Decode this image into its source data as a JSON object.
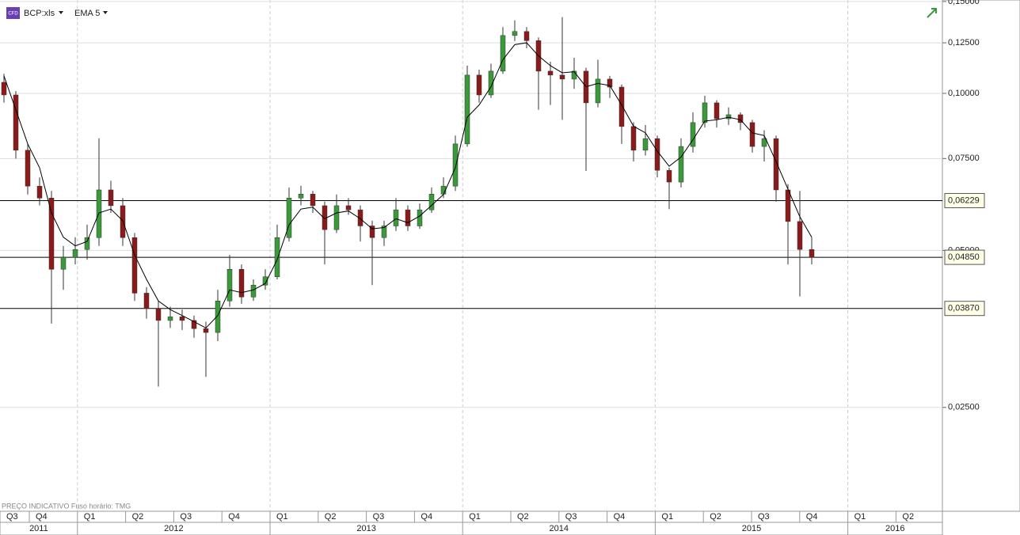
{
  "chart_data": {
    "type": "candlestick",
    "symbol": "BCP:xls",
    "icon_text": "CFD",
    "indicator": "EMA 5",
    "footer": "PREÇO INDICATIVO   Fuso horário: TMG",
    "log_scale": true,
    "grid": true,
    "up_color": "#3a9a3a",
    "down_color": "#8b1a1a",
    "ema_color": "#000000",
    "ylim": [
      0.0166,
      0.151
    ],
    "yticks": [
      {
        "value": 0.15,
        "label": "0,15000"
      },
      {
        "value": 0.125,
        "label": "0,12500"
      },
      {
        "value": 0.1,
        "label": "0,10000"
      },
      {
        "value": 0.075,
        "label": "0,07500"
      },
      {
        "value": 0.05,
        "label": "0,05000"
      },
      {
        "value": 0.025,
        "label": "0,02500"
      }
    ],
    "price_lines": [
      {
        "value": 0.06229,
        "label": "0,06229"
      },
      {
        "value": 0.0485,
        "label": "0,04850"
      },
      {
        "value": 0.0387,
        "label": "0,03870"
      }
    ],
    "quarters": [
      "Q3",
      "Q4",
      "Q1",
      "Q2",
      "Q3",
      "Q4",
      "Q1",
      "Q2",
      "Q3",
      "Q4",
      "Q1",
      "Q2",
      "Q3",
      "Q4",
      "Q1",
      "Q2",
      "Q3",
      "Q4",
      "Q1",
      "Q2"
    ],
    "years": [
      "2011",
      "2012",
      "2013",
      "2014",
      "2015",
      "2016"
    ],
    "ohlc": [
      [
        0.105,
        0.109,
        0.096,
        0.0993
      ],
      [
        0.0993,
        0.101,
        0.075,
        0.0778
      ],
      [
        0.0778,
        0.08,
        0.064,
        0.0664
      ],
      [
        0.0664,
        0.069,
        0.061,
        0.063
      ],
      [
        0.063,
        0.065,
        0.0362,
        0.046
      ],
      [
        0.046,
        0.051,
        0.042,
        0.0485
      ],
      [
        0.0485,
        0.053,
        0.047,
        0.0502
      ],
      [
        0.0502,
        0.056,
        0.048,
        0.0529
      ],
      [
        0.0529,
        0.082,
        0.051,
        0.0653
      ],
      [
        0.0653,
        0.068,
        0.059,
        0.0609
      ],
      [
        0.0609,
        0.063,
        0.051,
        0.0529
      ],
      [
        0.0529,
        0.054,
        0.04,
        0.0414
      ],
      [
        0.0414,
        0.0425,
        0.037,
        0.0387
      ],
      [
        0.0387,
        0.04,
        0.0274,
        0.0367
      ],
      [
        0.0367,
        0.039,
        0.0355,
        0.0373
      ],
      [
        0.0373,
        0.0385,
        0.0352,
        0.0367
      ],
      [
        0.0367,
        0.0375,
        0.034,
        0.0354
      ],
      [
        0.0354,
        0.0365,
        0.0286,
        0.0348
      ],
      [
        0.0348,
        0.042,
        0.0335,
        0.04
      ],
      [
        0.04,
        0.049,
        0.039,
        0.046
      ],
      [
        0.046,
        0.047,
        0.0395,
        0.0407
      ],
      [
        0.0407,
        0.044,
        0.04,
        0.0429
      ],
      [
        0.0429,
        0.046,
        0.042,
        0.0445
      ],
      [
        0.0445,
        0.056,
        0.044,
        0.0529
      ],
      [
        0.0529,
        0.066,
        0.052,
        0.063
      ],
      [
        0.063,
        0.0665,
        0.061,
        0.0641
      ],
      [
        0.0641,
        0.065,
        0.059,
        0.0609
      ],
      [
        0.0609,
        0.062,
        0.047,
        0.0548
      ],
      [
        0.0548,
        0.064,
        0.054,
        0.0609
      ],
      [
        0.0609,
        0.063,
        0.0585,
        0.0598
      ],
      [
        0.0598,
        0.061,
        0.052,
        0.0557
      ],
      [
        0.0557,
        0.057,
        0.0429,
        0.0529
      ],
      [
        0.0529,
        0.057,
        0.051,
        0.0557
      ],
      [
        0.0557,
        0.063,
        0.0545,
        0.0598
      ],
      [
        0.0598,
        0.061,
        0.0545,
        0.0557
      ],
      [
        0.0557,
        0.0615,
        0.055,
        0.0598
      ],
      [
        0.0598,
        0.066,
        0.059,
        0.0641
      ],
      [
        0.0641,
        0.069,
        0.063,
        0.0664
      ],
      [
        0.0664,
        0.083,
        0.065,
        0.08
      ],
      [
        0.08,
        0.113,
        0.079,
        0.1084
      ],
      [
        0.1084,
        0.111,
        0.096,
        0.0993
      ],
      [
        0.0993,
        0.114,
        0.098,
        0.1103
      ],
      [
        0.1103,
        0.134,
        0.109,
        0.1291
      ],
      [
        0.1291,
        0.138,
        0.126,
        0.1314
      ],
      [
        0.1314,
        0.134,
        0.122,
        0.1262
      ],
      [
        0.1262,
        0.128,
        0.093,
        0.1103
      ],
      [
        0.1103,
        0.115,
        0.095,
        0.1084
      ],
      [
        0.1084,
        0.14,
        0.089,
        0.1065
      ],
      [
        0.1065,
        0.117,
        0.102,
        0.1103
      ],
      [
        0.1103,
        0.112,
        0.071,
        0.0959
      ],
      [
        0.0959,
        0.116,
        0.094,
        0.1065
      ],
      [
        0.1065,
        0.108,
        0.098,
        0.1028
      ],
      [
        0.1028,
        0.104,
        0.08,
        0.0864
      ],
      [
        0.0864,
        0.088,
        0.074,
        0.0778
      ],
      [
        0.0778,
        0.087,
        0.076,
        0.0819
      ],
      [
        0.0819,
        0.083,
        0.069,
        0.0712
      ],
      [
        0.0712,
        0.072,
        0.06,
        0.0676
      ],
      [
        0.0676,
        0.082,
        0.066,
        0.0791
      ],
      [
        0.0791,
        0.092,
        0.077,
        0.0879
      ],
      [
        0.0879,
        0.099,
        0.086,
        0.0959
      ],
      [
        0.0959,
        0.097,
        0.086,
        0.0894
      ],
      [
        0.0894,
        0.094,
        0.087,
        0.091
      ],
      [
        0.091,
        0.092,
        0.085,
        0.0879
      ],
      [
        0.0879,
        0.089,
        0.077,
        0.0791
      ],
      [
        0.0791,
        0.085,
        0.074,
        0.0819
      ],
      [
        0.0819,
        0.083,
        0.062,
        0.0653
      ],
      [
        0.0653,
        0.067,
        0.047,
        0.0568
      ],
      [
        0.0568,
        0.065,
        0.0408,
        0.0502
      ],
      [
        0.0502,
        0.053,
        0.047,
        0.0485
      ]
    ],
    "ema": [
      0.108,
      0.093,
      0.08,
      0.072,
      0.059,
      0.053,
      0.051,
      0.052,
      0.059,
      0.06,
      0.057,
      0.049,
      0.044,
      0.04,
      0.0385,
      0.0375,
      0.0365,
      0.0355,
      0.0375,
      0.042,
      0.0415,
      0.042,
      0.0432,
      0.048,
      0.056,
      0.06,
      0.0605,
      0.0575,
      0.059,
      0.0595,
      0.0575,
      0.055,
      0.0553,
      0.0575,
      0.0565,
      0.0582,
      0.061,
      0.064,
      0.072,
      0.09,
      0.095,
      0.103,
      0.116,
      0.124,
      0.125,
      0.118,
      0.113,
      0.1095,
      0.11,
      0.103,
      0.1045,
      0.1035,
      0.095,
      0.0865,
      0.084,
      0.0775,
      0.0725,
      0.0755,
      0.0815,
      0.0885,
      0.089,
      0.09,
      0.089,
      0.084,
      0.083,
      0.074,
      0.0655,
      0.058,
      0.053
    ]
  }
}
